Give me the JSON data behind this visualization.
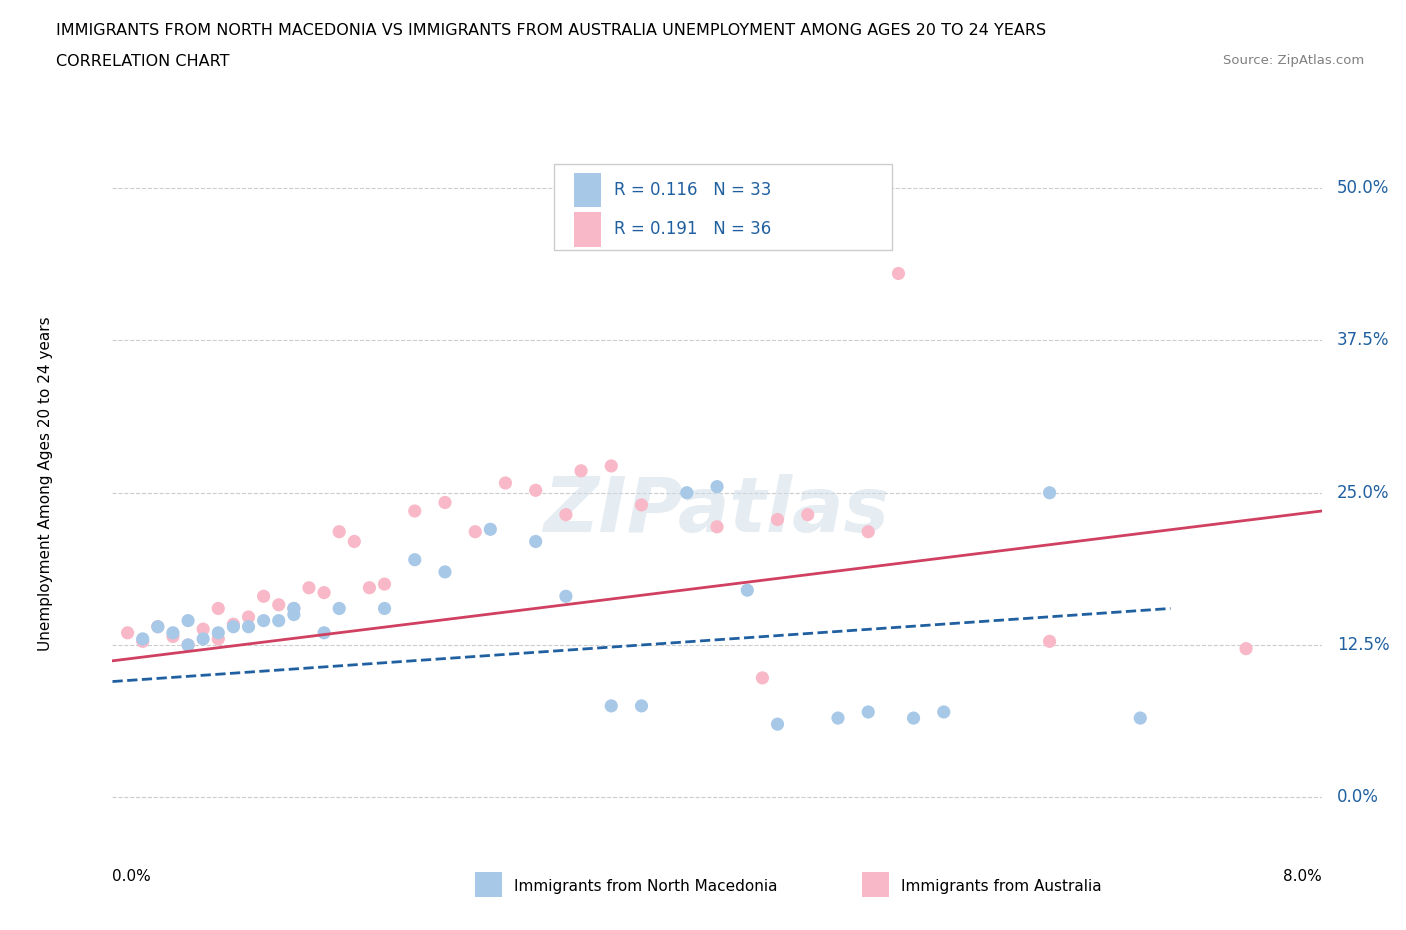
{
  "title_line1": "IMMIGRANTS FROM NORTH MACEDONIA VS IMMIGRANTS FROM AUSTRALIA UNEMPLOYMENT AMONG AGES 20 TO 24 YEARS",
  "title_line2": "CORRELATION CHART",
  "source_text": "Source: ZipAtlas.com",
  "xmin": 0.0,
  "xmax": 0.08,
  "ymin": -0.025,
  "ymax": 0.54,
  "ytick_vals": [
    0.0,
    0.125,
    0.25,
    0.375,
    0.5
  ],
  "ytick_labels": [
    "0.0%",
    "12.5%",
    "25.0%",
    "37.5%",
    "50.0%"
  ],
  "watermark": "ZIPatlas",
  "series1_label": "Immigrants from North Macedonia",
  "series1_R": "0.116",
  "series1_N": "33",
  "series1_color": "#a8c8e8",
  "series1_line_color": "#2060a0",
  "series1_scatter_x": [
    0.002,
    0.003,
    0.004,
    0.005,
    0.005,
    0.006,
    0.007,
    0.008,
    0.009,
    0.01,
    0.011,
    0.012,
    0.012,
    0.014,
    0.015,
    0.018,
    0.02,
    0.022,
    0.025,
    0.028,
    0.03,
    0.033,
    0.035,
    0.038,
    0.04,
    0.042,
    0.044,
    0.048,
    0.05,
    0.053,
    0.055,
    0.062,
    0.068
  ],
  "series1_scatter_y": [
    0.13,
    0.14,
    0.135,
    0.145,
    0.125,
    0.13,
    0.135,
    0.14,
    0.14,
    0.145,
    0.145,
    0.15,
    0.155,
    0.135,
    0.155,
    0.155,
    0.195,
    0.185,
    0.22,
    0.21,
    0.165,
    0.075,
    0.075,
    0.25,
    0.255,
    0.17,
    0.06,
    0.065,
    0.07,
    0.065,
    0.07,
    0.25,
    0.065
  ],
  "series1_trend_x": [
    0.0,
    0.07
  ],
  "series1_trend_y": [
    0.095,
    0.155
  ],
  "series2_label": "Immigrants from Australia",
  "series2_R": "0.191",
  "series2_N": "36",
  "series2_color": "#f8b8c8",
  "series2_line_color": "#d04060",
  "series2_scatter_x": [
    0.001,
    0.002,
    0.003,
    0.004,
    0.005,
    0.006,
    0.007,
    0.007,
    0.008,
    0.009,
    0.01,
    0.011,
    0.012,
    0.013,
    0.014,
    0.015,
    0.016,
    0.017,
    0.018,
    0.02,
    0.022,
    0.024,
    0.026,
    0.028,
    0.03,
    0.031,
    0.033,
    0.035,
    0.04,
    0.043,
    0.044,
    0.046,
    0.05,
    0.052,
    0.062,
    0.075
  ],
  "series2_scatter_y": [
    0.135,
    0.128,
    0.14,
    0.132,
    0.125,
    0.138,
    0.13,
    0.155,
    0.142,
    0.148,
    0.165,
    0.158,
    0.155,
    0.172,
    0.168,
    0.218,
    0.21,
    0.172,
    0.175,
    0.235,
    0.242,
    0.218,
    0.258,
    0.252,
    0.232,
    0.268,
    0.272,
    0.24,
    0.222,
    0.098,
    0.228,
    0.232,
    0.218,
    0.43,
    0.128,
    0.122
  ],
  "series2_trend_x": [
    0.0,
    0.08
  ],
  "series2_trend_y": [
    0.112,
    0.235
  ],
  "grid_color": "#cccccc",
  "background_color": "#ffffff",
  "title_fontsize": 11.5,
  "accent_color": "#2060a0"
}
